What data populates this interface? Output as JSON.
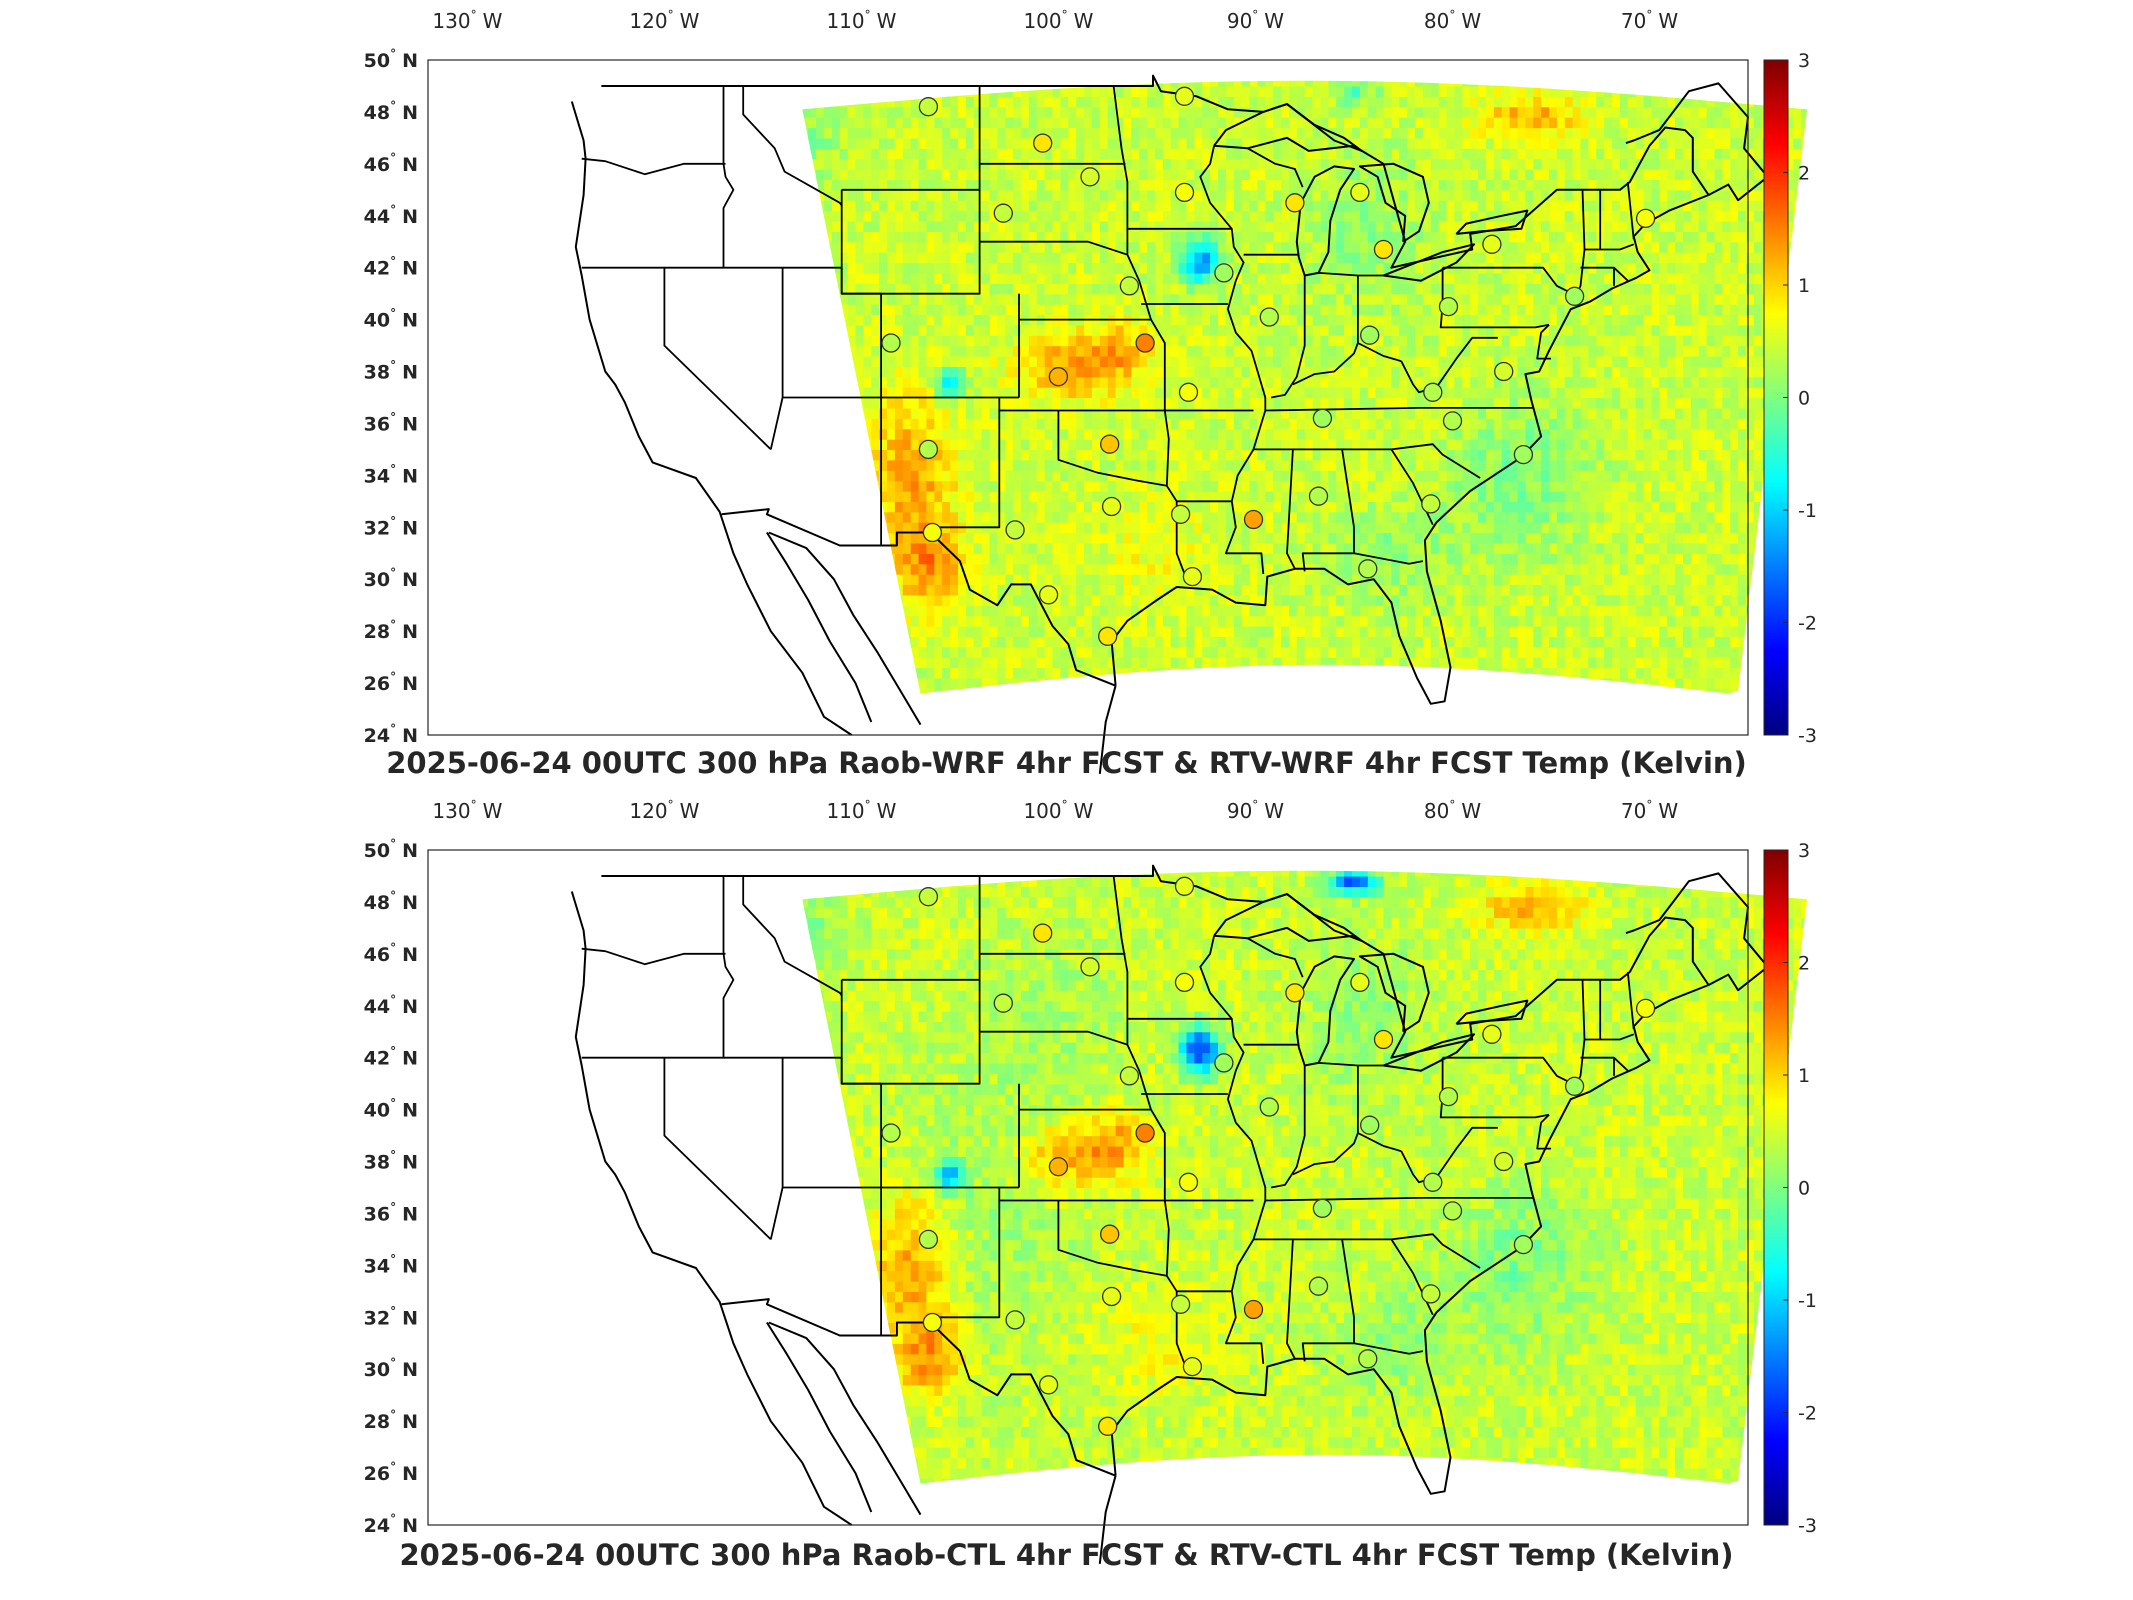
{
  "colorbar": {
    "min": -3,
    "max": 3,
    "ticks": [
      "3",
      "2",
      "1",
      "0",
      "-1",
      "-2",
      "-3"
    ],
    "colormap": [
      "#00007f",
      "#0000ff",
      "#007fff",
      "#00ffff",
      "#7fff7f",
      "#ffff00",
      "#ff7f00",
      "#ff0000",
      "#7f0000"
    ]
  },
  "axes": {
    "lon_labels": [
      {
        "num": "130",
        "unit": "W"
      },
      {
        "num": "120",
        "unit": "W"
      },
      {
        "num": "110",
        "unit": "W"
      },
      {
        "num": "100",
        "unit": "W"
      },
      {
        "num": "90",
        "unit": "W"
      },
      {
        "num": "80",
        "unit": "W"
      },
      {
        "num": "70",
        "unit": "W"
      }
    ],
    "lat_labels": [
      {
        "num": "50",
        "unit": "N"
      },
      {
        "num": "48",
        "unit": "N"
      },
      {
        "num": "46",
        "unit": "N"
      },
      {
        "num": "44",
        "unit": "N"
      },
      {
        "num": "42",
        "unit": "N"
      },
      {
        "num": "40",
        "unit": "N"
      },
      {
        "num": "38",
        "unit": "N"
      },
      {
        "num": "36",
        "unit": "N"
      },
      {
        "num": "34",
        "unit": "N"
      },
      {
        "num": "32",
        "unit": "N"
      },
      {
        "num": "30",
        "unit": "N"
      },
      {
        "num": "28",
        "unit": "N"
      },
      {
        "num": "26",
        "unit": "N"
      },
      {
        "num": "24",
        "unit": "N"
      }
    ]
  },
  "panels": [
    {
      "title": "2025-06-24 00UTC 300 hPa Raob-WRF 4hr FCST & RTV-WRF 4hr FCST Temp (Kelvin)",
      "stations": [
        {
          "lon": -106.6,
          "lat": 48.2,
          "v": 0.4
        },
        {
          "lon": -100.8,
          "lat": 46.8,
          "v": 0.9
        },
        {
          "lon": -98.4,
          "lat": 45.5,
          "v": 0.5
        },
        {
          "lon": -102.8,
          "lat": 44.1,
          "v": 0.4
        },
        {
          "lon": -93.6,
          "lat": 48.6,
          "v": 0.6
        },
        {
          "lon": -93.6,
          "lat": 44.9,
          "v": 0.7
        },
        {
          "lon": -88.0,
          "lat": 44.5,
          "v": 0.9
        },
        {
          "lon": -84.7,
          "lat": 44.9,
          "v": 0.6
        },
        {
          "lon": -83.5,
          "lat": 42.7,
          "v": 0.9
        },
        {
          "lon": -78.0,
          "lat": 42.9,
          "v": 0.6
        },
        {
          "lon": -70.2,
          "lat": 43.9,
          "v": 0.7
        },
        {
          "lon": -73.8,
          "lat": 40.9,
          "v": 0.2
        },
        {
          "lon": -80.2,
          "lat": 40.5,
          "v": 0.3
        },
        {
          "lon": -84.2,
          "lat": 39.4,
          "v": 0.2
        },
        {
          "lon": -89.3,
          "lat": 40.1,
          "v": 0.3
        },
        {
          "lon": -91.6,
          "lat": 41.8,
          "v": 0.2
        },
        {
          "lon": -96.4,
          "lat": 41.3,
          "v": 0.4
        },
        {
          "lon": -95.6,
          "lat": 39.1,
          "v": 1.5
        },
        {
          "lon": -100.0,
          "lat": 37.8,
          "v": 1.2
        },
        {
          "lon": -108.5,
          "lat": 39.1,
          "v": 0.3
        },
        {
          "lon": -106.6,
          "lat": 35.0,
          "v": 0.3
        },
        {
          "lon": -97.4,
          "lat": 35.2,
          "v": 1.1
        },
        {
          "lon": -93.4,
          "lat": 37.2,
          "v": 0.7
        },
        {
          "lon": -86.6,
          "lat": 36.2,
          "v": 0.2
        },
        {
          "lon": -81.0,
          "lat": 37.2,
          "v": 0.3
        },
        {
          "lon": -77.4,
          "lat": 38.0,
          "v": 0.5
        },
        {
          "lon": -80.0,
          "lat": 36.1,
          "v": 0.3
        },
        {
          "lon": -76.4,
          "lat": 34.8,
          "v": 0.2
        },
        {
          "lon": -81.1,
          "lat": 32.9,
          "v": 0.4
        },
        {
          "lon": -86.8,
          "lat": 33.2,
          "v": 0.3
        },
        {
          "lon": -90.1,
          "lat": 32.3,
          "v": 1.3
        },
        {
          "lon": -93.8,
          "lat": 32.5,
          "v": 0.4
        },
        {
          "lon": -97.3,
          "lat": 32.8,
          "v": 0.6
        },
        {
          "lon": -102.2,
          "lat": 31.9,
          "v": 0.4
        },
        {
          "lon": -106.4,
          "lat": 31.8,
          "v": 0.7
        },
        {
          "lon": -100.5,
          "lat": 29.4,
          "v": 0.6
        },
        {
          "lon": -97.5,
          "lat": 27.8,
          "v": 0.9
        },
        {
          "lon": -93.2,
          "lat": 30.1,
          "v": 0.6
        },
        {
          "lon": -84.3,
          "lat": 30.4,
          "v": 0.3
        }
      ]
    },
    {
      "title": "2025-06-24 00UTC 300 hPa Raob-CTL 4hr FCST & RTV-CTL 4hr FCST Temp (Kelvin)",
      "stations": [
        {
          "lon": -106.6,
          "lat": 48.2,
          "v": 0.4
        },
        {
          "lon": -100.8,
          "lat": 46.8,
          "v": 0.9
        },
        {
          "lon": -98.4,
          "lat": 45.5,
          "v": 0.5
        },
        {
          "lon": -102.8,
          "lat": 44.1,
          "v": 0.4
        },
        {
          "lon": -93.6,
          "lat": 48.6,
          "v": 0.6
        },
        {
          "lon": -93.6,
          "lat": 44.9,
          "v": 0.7
        },
        {
          "lon": -88.0,
          "lat": 44.5,
          "v": 0.9
        },
        {
          "lon": -84.7,
          "lat": 44.9,
          "v": 0.6
        },
        {
          "lon": -83.5,
          "lat": 42.7,
          "v": 0.9
        },
        {
          "lon": -78.0,
          "lat": 42.9,
          "v": 0.6
        },
        {
          "lon": -70.2,
          "lat": 43.9,
          "v": 0.7
        },
        {
          "lon": -73.8,
          "lat": 40.9,
          "v": 0.2
        },
        {
          "lon": -80.2,
          "lat": 40.5,
          "v": 0.3
        },
        {
          "lon": -84.2,
          "lat": 39.4,
          "v": 0.2
        },
        {
          "lon": -89.3,
          "lat": 40.1,
          "v": 0.3
        },
        {
          "lon": -91.6,
          "lat": 41.8,
          "v": 0.2
        },
        {
          "lon": -96.4,
          "lat": 41.3,
          "v": 0.4
        },
        {
          "lon": -95.6,
          "lat": 39.1,
          "v": 1.5
        },
        {
          "lon": -100.0,
          "lat": 37.8,
          "v": 1.2
        },
        {
          "lon": -108.5,
          "lat": 39.1,
          "v": 0.3
        },
        {
          "lon": -106.6,
          "lat": 35.0,
          "v": 0.3
        },
        {
          "lon": -97.4,
          "lat": 35.2,
          "v": 1.1
        },
        {
          "lon": -93.4,
          "lat": 37.2,
          "v": 0.7
        },
        {
          "lon": -86.6,
          "lat": 36.2,
          "v": 0.2
        },
        {
          "lon": -81.0,
          "lat": 37.2,
          "v": 0.3
        },
        {
          "lon": -77.4,
          "lat": 38.0,
          "v": 0.5
        },
        {
          "lon": -80.0,
          "lat": 36.1,
          "v": 0.3
        },
        {
          "lon": -76.4,
          "lat": 34.8,
          "v": 0.2
        },
        {
          "lon": -81.1,
          "lat": 32.9,
          "v": 0.4
        },
        {
          "lon": -86.8,
          "lat": 33.2,
          "v": 0.3
        },
        {
          "lon": -90.1,
          "lat": 32.3,
          "v": 1.3
        },
        {
          "lon": -93.8,
          "lat": 32.5,
          "v": 0.4
        },
        {
          "lon": -97.3,
          "lat": 32.8,
          "v": 0.6
        },
        {
          "lon": -102.2,
          "lat": 31.9,
          "v": 0.4
        },
        {
          "lon": -106.4,
          "lat": 31.8,
          "v": 0.7
        },
        {
          "lon": -100.5,
          "lat": 29.4,
          "v": 0.6
        },
        {
          "lon": -97.5,
          "lat": 27.8,
          "v": 0.9
        },
        {
          "lon": -93.2,
          "lat": 30.1,
          "v": 0.6
        },
        {
          "lon": -84.3,
          "lat": 30.4,
          "v": 0.3
        }
      ]
    }
  ]
}
